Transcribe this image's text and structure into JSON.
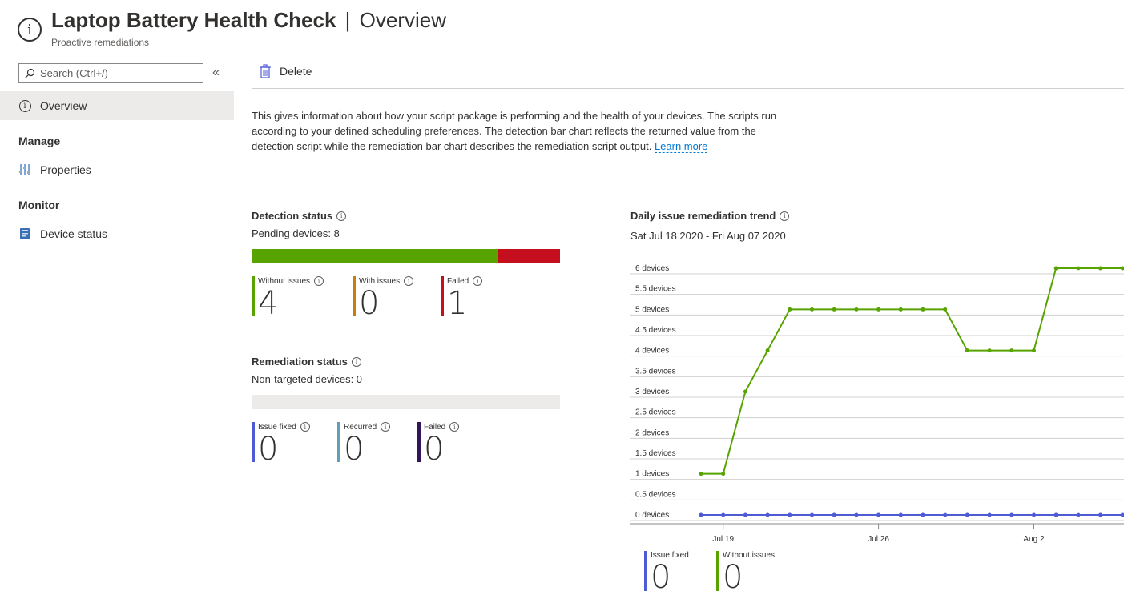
{
  "header": {
    "title": "Laptop Battery Health Check",
    "separator": "|",
    "section": "Overview",
    "subtitle": "Proactive remediations",
    "icon": "info-icon"
  },
  "sidebar": {
    "search_placeholder": "Search (Ctrl+/)",
    "collapse_glyph": "«",
    "items": [
      {
        "label": "Overview",
        "icon": "info-icon",
        "selected": true
      }
    ],
    "sections": [
      {
        "title": "Manage",
        "items": [
          {
            "label": "Properties",
            "icon": "properties-icon"
          }
        ]
      },
      {
        "title": "Monitor",
        "items": [
          {
            "label": "Device status",
            "icon": "device-status-icon"
          }
        ]
      }
    ]
  },
  "toolbar": {
    "delete_label": "Delete"
  },
  "description": {
    "text": "This gives information about how your script package is performing and the health of your devices. The scripts run according to your defined scheduling preferences. The detection bar chart reflects the returned value from the detection script while the remediation bar chart describes the remediation script output. ",
    "link": "Learn more"
  },
  "detection": {
    "title": "Detection status",
    "pending_text": "Pending devices: 8",
    "bar": [
      {
        "name": "Without issues",
        "fraction": 0.8,
        "color": "#57a300"
      },
      {
        "name": "Failed",
        "fraction": 0.2,
        "color": "#c50f1f"
      }
    ],
    "tiles": [
      {
        "label": "Without issues",
        "value": "4",
        "color": "#57a300"
      },
      {
        "label": "With issues",
        "value": "0",
        "color": "#c87f0a"
      },
      {
        "label": "Failed",
        "value": "1",
        "color": "#c50f1f"
      }
    ]
  },
  "remediation": {
    "title": "Remediation status",
    "nontargeted_text": "Non-targeted devices: 0",
    "bar_color": "#edebe9",
    "tiles": [
      {
        "label": "Issue fixed",
        "value": "0",
        "color": "#4f5bd5"
      },
      {
        "label": "Recurred",
        "value": "0",
        "color": "#5ea0b8"
      },
      {
        "label": "Failed",
        "value": "0",
        "color": "#32145a"
      }
    ]
  },
  "trend": {
    "title": "Daily issue remediation trend",
    "date_range": "Sat Jul 18 2020 - Fri Aug 07 2020",
    "legend": [
      {
        "label": "Issue fixed",
        "value": "0",
        "color": "#4f5bd5"
      },
      {
        "label": "Without issues",
        "value": "0",
        "color": "#57a300"
      }
    ]
  },
  "chart_data": {
    "type": "line",
    "y_tick_labels": [
      "0 devices",
      "0.5 devices",
      "1 devices",
      "1.5 devices",
      "2 devices",
      "2.5 devices",
      "3 devices",
      "3.5 devices",
      "4 devices",
      "4.5 devices",
      "5 devices",
      "5.5 devices",
      "6 devices"
    ],
    "ylim": [
      0,
      6
    ],
    "x_tick_labels": [
      "Jul 19",
      "Jul 26",
      "Aug 2"
    ],
    "x_tick_days": [
      19,
      26,
      33
    ],
    "x": [
      18,
      19,
      20,
      21,
      22,
      23,
      24,
      25,
      26,
      27,
      28,
      29,
      30,
      31,
      32,
      33,
      34,
      35,
      36,
      37
    ],
    "series": [
      {
        "name": "Without issues",
        "color": "#57a300",
        "values": [
          1,
          1,
          3,
          4,
          5,
          5,
          5,
          5,
          5,
          5,
          5,
          5,
          4,
          4,
          4,
          4,
          6,
          6,
          6,
          6
        ]
      },
      {
        "name": "Issue fixed",
        "color": "#4f5bd5",
        "values": [
          0,
          0,
          0,
          0,
          0,
          0,
          0,
          0,
          0,
          0,
          0,
          0,
          0,
          0,
          0,
          0,
          0,
          0,
          0,
          0
        ]
      }
    ]
  }
}
